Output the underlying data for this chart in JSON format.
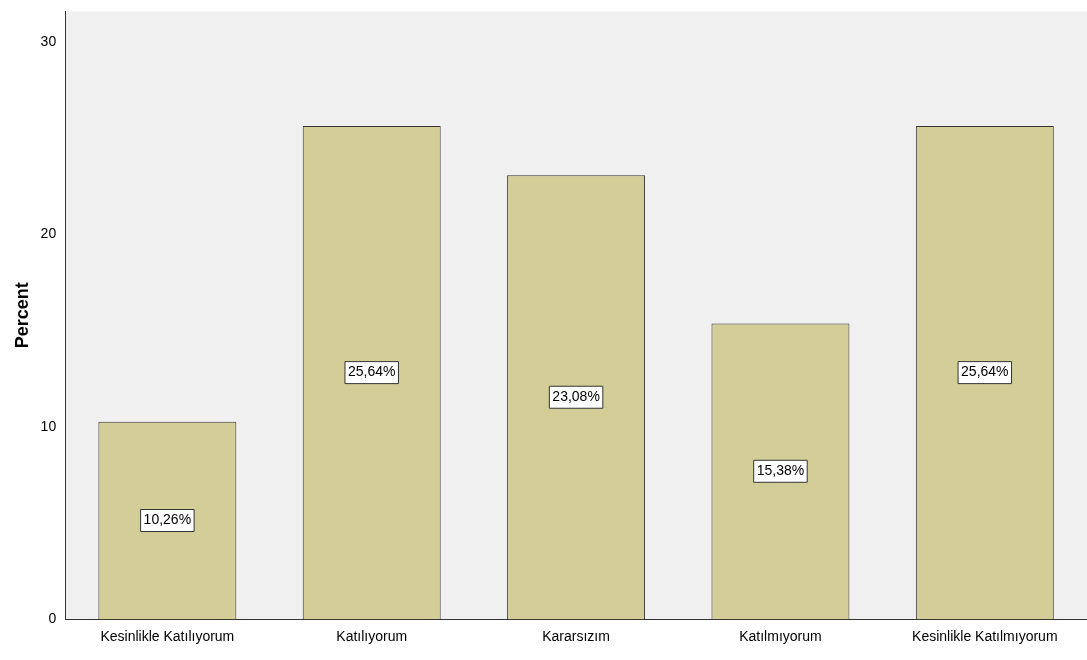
{
  "chart_data": {
    "type": "bar",
    "ylabel": "Percent",
    "categories": [
      "Kesinlikle Katılıyorum",
      "Katılıyorum",
      "Kararsızım",
      "Katılmıyorum",
      "Kesinlikle Katılmıyorum"
    ],
    "values": [
      10.26,
      25.64,
      23.08,
      15.38,
      25.64
    ],
    "value_labels": [
      "10,26%",
      "25,64%",
      "23,08%",
      "15,38%",
      "25,64%"
    ],
    "color": "#d3ce97",
    "ylim": [
      0,
      31.6
    ],
    "yticks": [
      0,
      10,
      20,
      30
    ],
    "grid": false,
    "legend": false
  }
}
